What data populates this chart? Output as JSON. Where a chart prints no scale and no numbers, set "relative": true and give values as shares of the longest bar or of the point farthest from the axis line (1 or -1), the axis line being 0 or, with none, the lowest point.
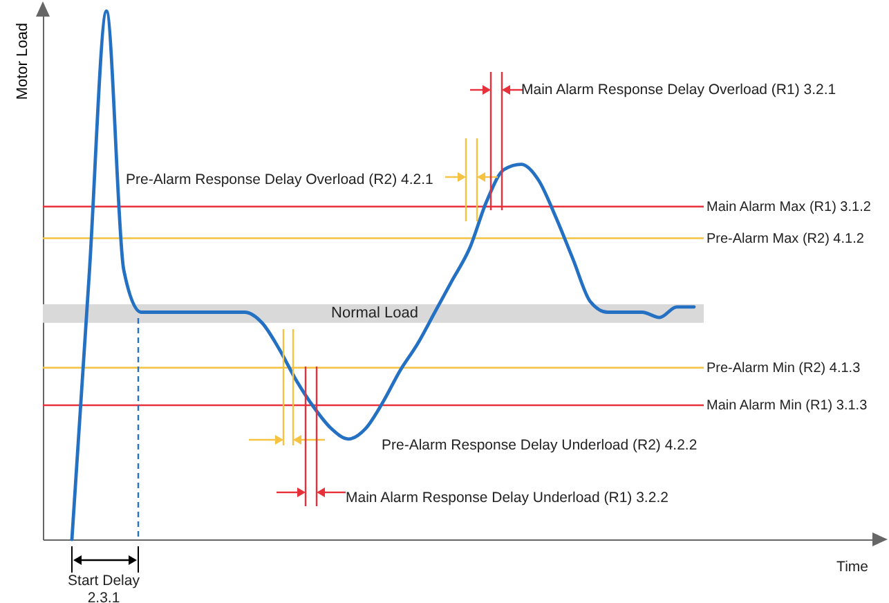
{
  "chart_data": {
    "type": "line",
    "ylabel": "Motor Load",
    "relative": true,
    "categories": [
      null,
      null,
      null,
      null,
      null,
      null,
      null,
      null,
      null,
      null,
      null,
      null,
      null,
      null,
      null,
      null,
      null,
      null,
      null,
      null,
      null,
      null,
      null,
      null,
      null,
      null,
      null,
      null,
      null,
      null,
      null,
      null,
      null,
      null,
      null,
      null,
      null
    ],
    "series": [
      {
        "color": "#2470c2",
        "values": [
          0,
          0.5,
          1,
          0.51,
          0.43,
          0.43,
          0.43,
          0.43,
          0.43,
          0.43,
          0.43,
          0.41,
          0.36,
          0.3,
          0.25,
          0.21,
          0.19,
          0.21,
          0.26,
          0.32,
          0.37,
          0.43,
          0.49,
          0.55,
          0.64,
          0.7,
          0.71,
          0.68,
          0.61,
          0.53,
          0.45,
          0.43,
          0.43,
          0.43,
          0.42,
          0.44,
          0.44
        ]
      }
    ],
    "bands": [
      {
        "axis": "y",
        "from": 0.41,
        "to": 0.445,
        "label": "Normal Load",
        "color": "#d9d9d9"
      }
    ],
    "ref_lines": [
      {
        "axis": "y",
        "value": 0.63,
        "label": "Main Alarm Max (R1) 3.1.2",
        "color": "#e8303a"
      },
      {
        "axis": "y",
        "value": 0.57,
        "label": "Pre-Alarm Max (R2) 4.1.2",
        "color": "#f5c242"
      },
      {
        "axis": "y",
        "value": 0.325,
        "label": "Pre-Alarm Min (R2) 4.1.3",
        "color": "#f5c242"
      },
      {
        "axis": "y",
        "value": 0.254,
        "label": "Main Alarm Min (R1) 3.1.3",
        "color": "#e8303a"
      }
    ],
    "annotations": [
      "Main Alarm Response Delay Overload (R1) 3.2.1",
      "Pre-Alarm Response Delay Overload (R2) 4.2.1",
      "Pre-Alarm Response Delay Underload (R2) 4.2.2",
      "Main Alarm Response Delay Underload (R1) 3.2.2",
      "Start Delay 2.3.1",
      "Time"
    ]
  }
}
